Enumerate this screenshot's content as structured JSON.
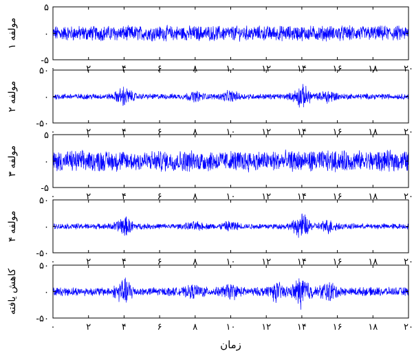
{
  "chart_data": [
    {
      "type": "line",
      "ylabel": "مولفه ۱",
      "ylim": [
        -5,
        5
      ],
      "yticks": [
        "۵",
        "۰",
        "-۵"
      ],
      "xlim": [
        0,
        20
      ],
      "xticks": [
        "۰",
        "۲",
        "۴",
        "۶",
        "۸",
        "۱۰",
        "۱۲",
        "۱۴",
        "۱۶",
        "۱۸",
        "۲۰"
      ],
      "signal": {
        "amplitude": 1.6,
        "bursts": []
      }
    },
    {
      "type": "line",
      "ylabel": "مولفه ۲",
      "ylim": [
        -50,
        50
      ],
      "yticks": [
        "۵۰",
        "۰",
        "-۵۰"
      ],
      "xlim": [
        0,
        20
      ],
      "xticks": [
        "۰",
        "۲",
        "۴",
        "۶",
        "۸",
        "۱۰",
        "۱۲",
        "۱۴",
        "۱۶",
        "۱۸",
        "۲۰"
      ],
      "signal": {
        "amplitude": 6,
        "bursts": [
          [
            4,
            16
          ],
          [
            10,
            8
          ],
          [
            14,
            20
          ],
          [
            15.5,
            10
          ],
          [
            8,
            6
          ]
        ]
      }
    },
    {
      "type": "line",
      "ylabel": "مولفه ۳",
      "ylim": [
        -5,
        5
      ],
      "yticks": [
        "۵",
        "۰",
        "-۵"
      ],
      "xlim": [
        0,
        20
      ],
      "xticks": [
        "۰",
        "۲",
        "۴",
        "۶",
        "۸",
        "۱۰",
        "۱۲",
        "۱۴",
        "۱۶",
        "۱۸",
        "۲۰"
      ],
      "signal": {
        "amplitude": 2.2,
        "bursts": []
      }
    },
    {
      "type": "line",
      "ylabel": "مولفه ۴",
      "ylim": [
        -50,
        50
      ],
      "yticks": [
        "۵۰",
        "۰",
        "-۵۰"
      ],
      "xlim": [
        0,
        20
      ],
      "xticks": [
        "۰",
        "۲",
        "۴",
        "۶",
        "۸",
        "۱۰",
        "۱۲",
        "۱۴",
        "۱۶",
        "۱۸",
        "۲۰"
      ],
      "signal": {
        "amplitude": 6,
        "bursts": [
          [
            4,
            16
          ],
          [
            10,
            7
          ],
          [
            14,
            22
          ],
          [
            15.5,
            10
          ],
          [
            8,
            5
          ]
        ]
      }
    },
    {
      "type": "line",
      "ylabel": "کاهش یافته",
      "ylim": [
        -50,
        50
      ],
      "yticks": [
        "۵۰",
        "۰",
        "-۵۰"
      ],
      "xlim": [
        0,
        20
      ],
      "xticks": [
        "۰",
        "۲",
        "۴",
        "۶",
        "۸",
        "۱۰",
        "۱۲",
        "۱۴",
        "۱۶",
        "۱۸",
        "۲۰"
      ],
      "xlabel": "زمان",
      "signal": {
        "amplitude": 9,
        "bursts": [
          [
            4,
            20
          ],
          [
            12.5,
            14
          ],
          [
            14,
            26
          ],
          [
            15.5,
            14
          ],
          [
            10,
            10
          ],
          [
            8,
            8
          ]
        ]
      }
    }
  ],
  "colors": {
    "line": "#0000ff",
    "axis": "#000000"
  }
}
